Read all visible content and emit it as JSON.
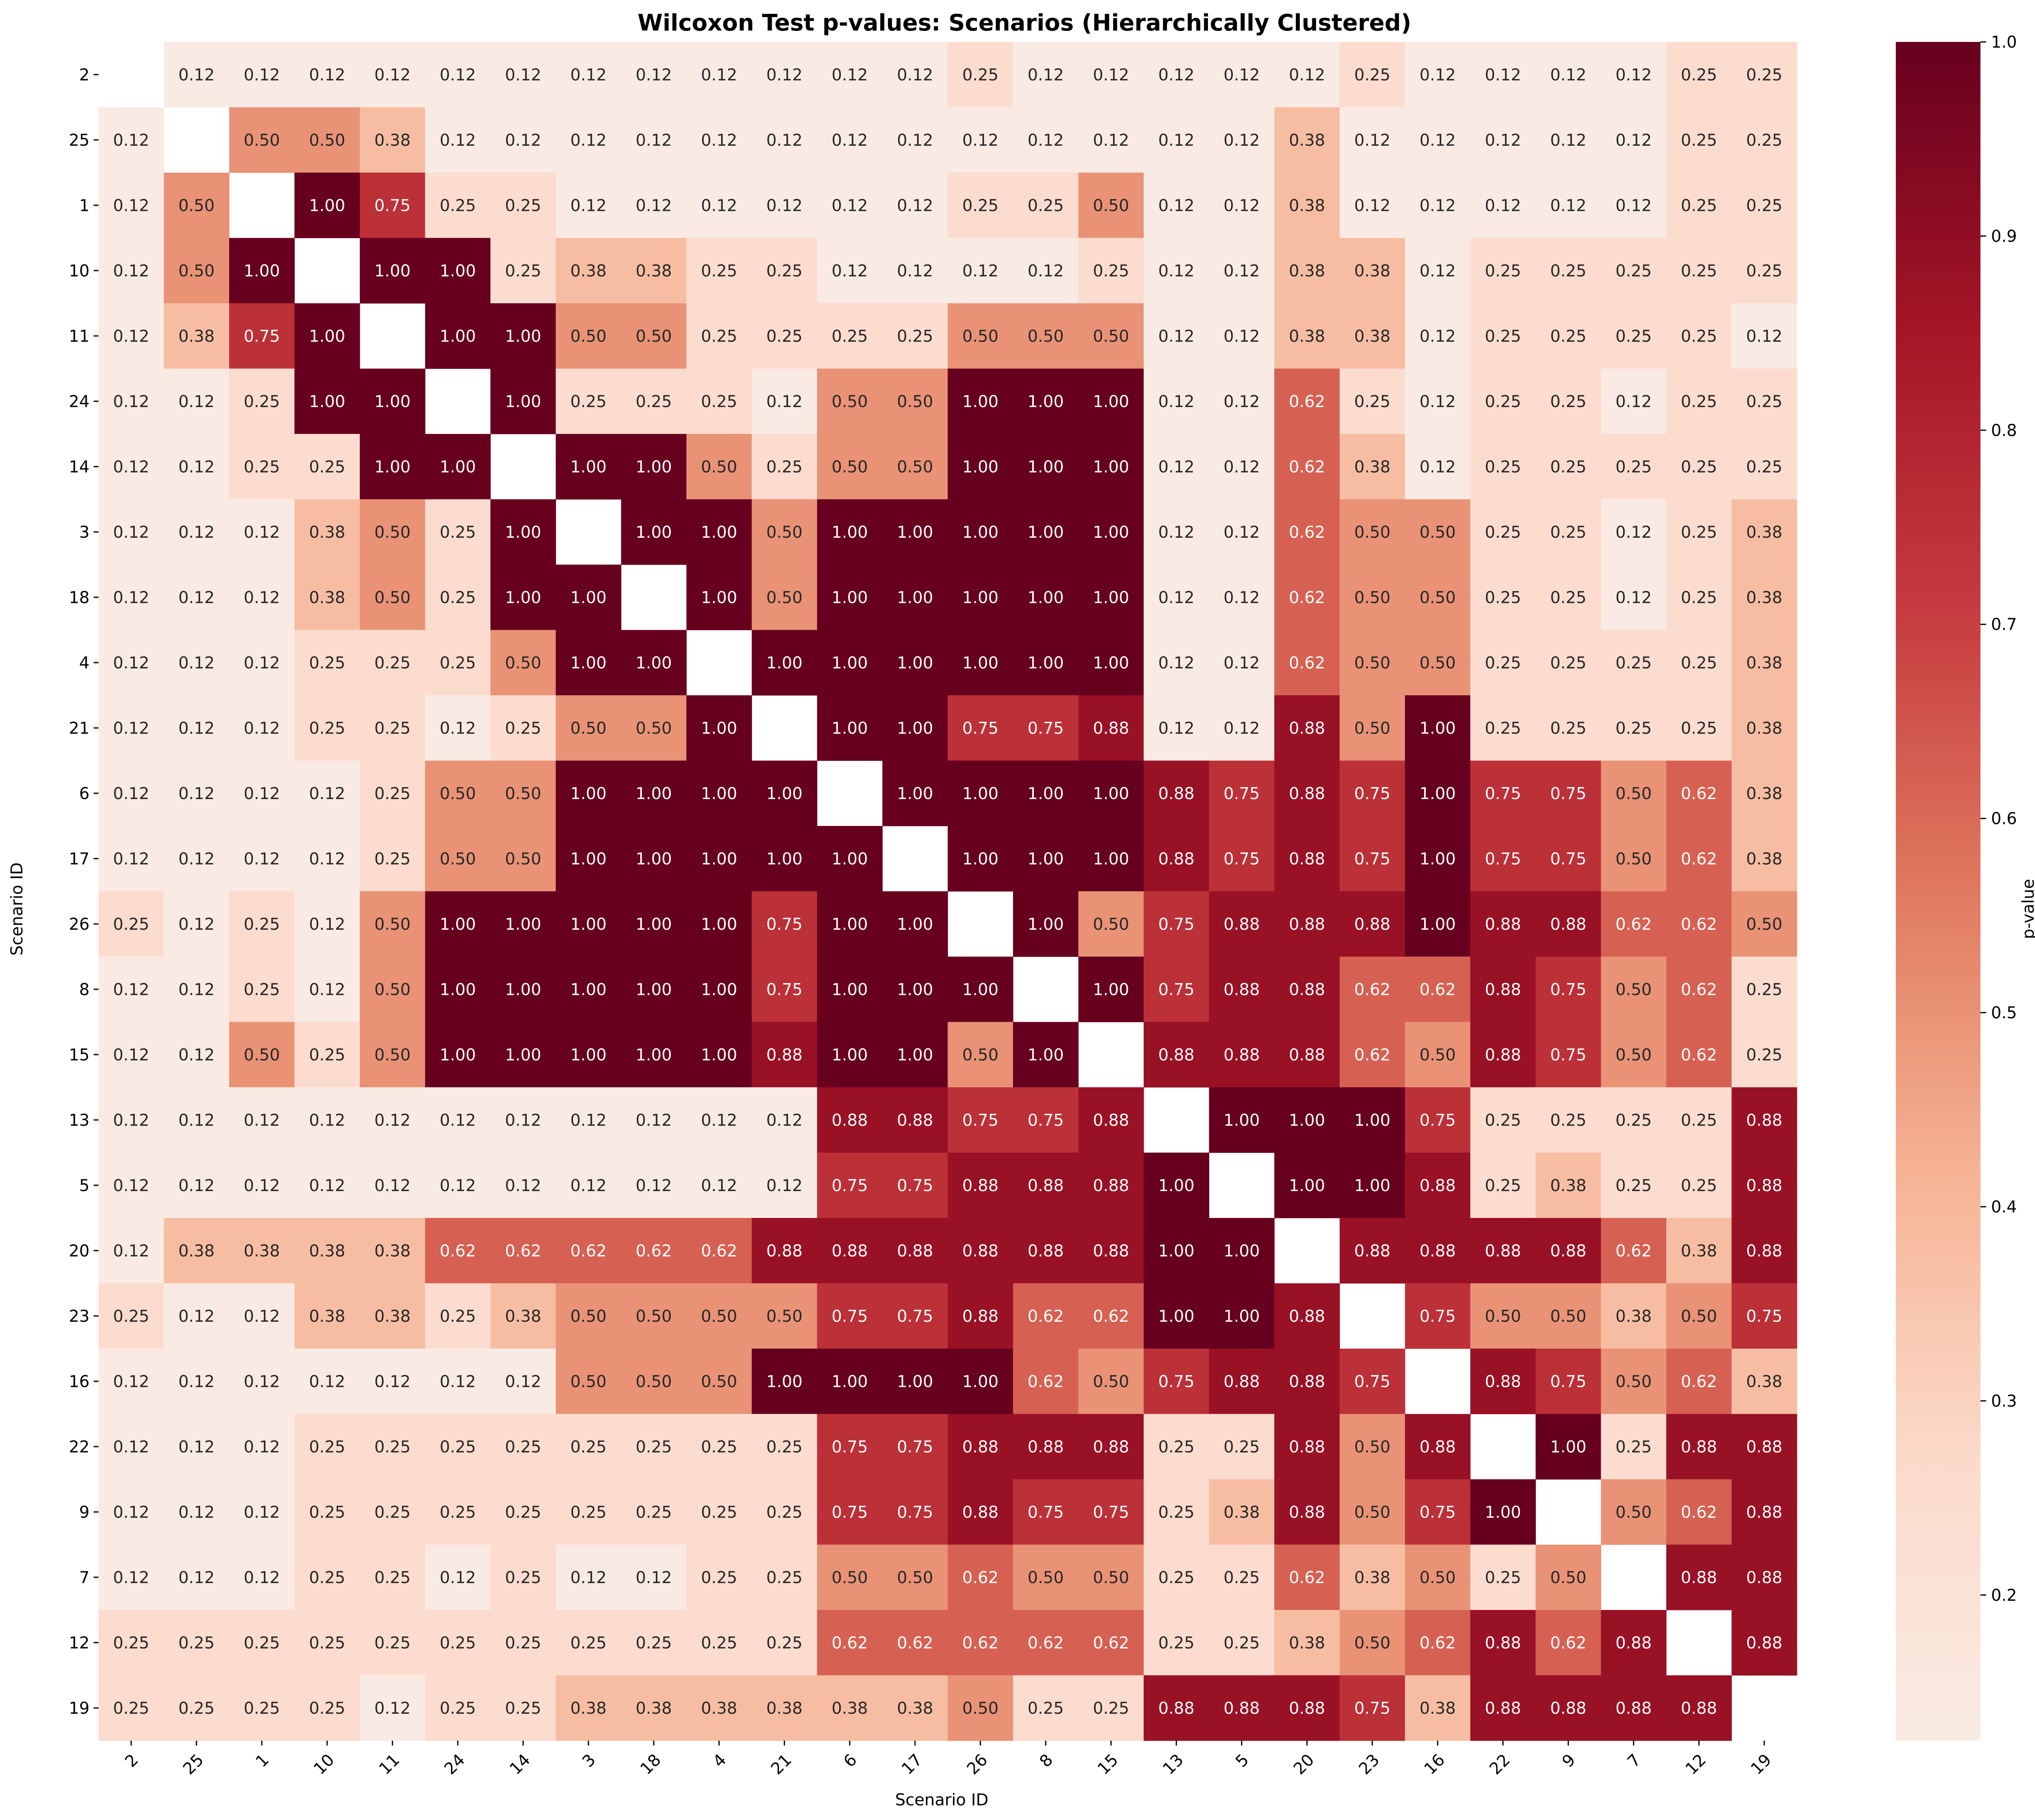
{
  "chart_data": {
    "type": "heatmap",
    "title": "Wilcoxon Test p-values: Scenarios (Hierarchically Clustered)",
    "xlabel": "Scenario ID",
    "ylabel": "Scenario ID",
    "row_labels": [
      "2",
      "25",
      "1",
      "10",
      "11",
      "24",
      "14",
      "3",
      "18",
      "4",
      "21",
      "6",
      "17",
      "26",
      "8",
      "15",
      "13",
      "5",
      "20",
      "23",
      "16",
      "22",
      "9",
      "7",
      "12",
      "19"
    ],
    "col_labels": [
      "2",
      "25",
      "1",
      "10",
      "11",
      "24",
      "14",
      "3",
      "18",
      "4",
      "21",
      "6",
      "17",
      "26",
      "8",
      "15",
      "13",
      "5",
      "20",
      "23",
      "16",
      "22",
      "9",
      "7",
      "12",
      "19"
    ],
    "values": [
      [
        null,
        0.12,
        0.12,
        0.12,
        0.12,
        0.12,
        0.12,
        0.12,
        0.12,
        0.12,
        0.12,
        0.12,
        0.12,
        0.25,
        0.12,
        0.12,
        0.12,
        0.12,
        0.12,
        0.25,
        0.12,
        0.12,
        0.12,
        0.12,
        0.25,
        0.25
      ],
      [
        0.12,
        null,
        0.5,
        0.5,
        0.38,
        0.12,
        0.12,
        0.12,
        0.12,
        0.12,
        0.12,
        0.12,
        0.12,
        0.12,
        0.12,
        0.12,
        0.12,
        0.12,
        0.38,
        0.12,
        0.12,
        0.12,
        0.12,
        0.12,
        0.25,
        0.25
      ],
      [
        0.12,
        0.5,
        null,
        1.0,
        0.75,
        0.25,
        0.25,
        0.12,
        0.12,
        0.12,
        0.12,
        0.12,
        0.12,
        0.25,
        0.25,
        0.5,
        0.12,
        0.12,
        0.38,
        0.12,
        0.12,
        0.12,
        0.12,
        0.12,
        0.25,
        0.25
      ],
      [
        0.12,
        0.5,
        1.0,
        null,
        1.0,
        1.0,
        0.25,
        0.38,
        0.38,
        0.25,
        0.25,
        0.12,
        0.12,
        0.12,
        0.12,
        0.25,
        0.12,
        0.12,
        0.38,
        0.38,
        0.12,
        0.25,
        0.25,
        0.25,
        0.25,
        0.25
      ],
      [
        0.12,
        0.38,
        0.75,
        1.0,
        null,
        1.0,
        1.0,
        0.5,
        0.5,
        0.25,
        0.25,
        0.25,
        0.25,
        0.5,
        0.5,
        0.5,
        0.12,
        0.12,
        0.38,
        0.38,
        0.12,
        0.25,
        0.25,
        0.25,
        0.25,
        0.12
      ],
      [
        0.12,
        0.12,
        0.25,
        1.0,
        1.0,
        null,
        1.0,
        0.25,
        0.25,
        0.25,
        0.12,
        0.5,
        0.5,
        1.0,
        1.0,
        1.0,
        0.12,
        0.12,
        0.62,
        0.25,
        0.12,
        0.25,
        0.25,
        0.12,
        0.25,
        0.25
      ],
      [
        0.12,
        0.12,
        0.25,
        0.25,
        1.0,
        1.0,
        null,
        1.0,
        1.0,
        0.5,
        0.25,
        0.5,
        0.5,
        1.0,
        1.0,
        1.0,
        0.12,
        0.12,
        0.62,
        0.38,
        0.12,
        0.25,
        0.25,
        0.25,
        0.25,
        0.25
      ],
      [
        0.12,
        0.12,
        0.12,
        0.38,
        0.5,
        0.25,
        1.0,
        null,
        1.0,
        1.0,
        0.5,
        1.0,
        1.0,
        1.0,
        1.0,
        1.0,
        0.12,
        0.12,
        0.62,
        0.5,
        0.5,
        0.25,
        0.25,
        0.12,
        0.25,
        0.38
      ],
      [
        0.12,
        0.12,
        0.12,
        0.38,
        0.5,
        0.25,
        1.0,
        1.0,
        null,
        1.0,
        0.5,
        1.0,
        1.0,
        1.0,
        1.0,
        1.0,
        0.12,
        0.12,
        0.62,
        0.5,
        0.5,
        0.25,
        0.25,
        0.12,
        0.25,
        0.38
      ],
      [
        0.12,
        0.12,
        0.12,
        0.25,
        0.25,
        0.25,
        0.5,
        1.0,
        1.0,
        null,
        1.0,
        1.0,
        1.0,
        1.0,
        1.0,
        1.0,
        0.12,
        0.12,
        0.62,
        0.5,
        0.5,
        0.25,
        0.25,
        0.25,
        0.25,
        0.38
      ],
      [
        0.12,
        0.12,
        0.12,
        0.25,
        0.25,
        0.12,
        0.25,
        0.5,
        0.5,
        1.0,
        null,
        1.0,
        1.0,
        0.75,
        0.75,
        0.88,
        0.12,
        0.12,
        0.88,
        0.5,
        1.0,
        0.25,
        0.25,
        0.25,
        0.25,
        0.38
      ],
      [
        0.12,
        0.12,
        0.12,
        0.12,
        0.25,
        0.5,
        0.5,
        1.0,
        1.0,
        1.0,
        1.0,
        null,
        1.0,
        1.0,
        1.0,
        1.0,
        0.88,
        0.75,
        0.88,
        0.75,
        1.0,
        0.75,
        0.75,
        0.5,
        0.62,
        0.38
      ],
      [
        0.12,
        0.12,
        0.12,
        0.12,
        0.25,
        0.5,
        0.5,
        1.0,
        1.0,
        1.0,
        1.0,
        1.0,
        null,
        1.0,
        1.0,
        1.0,
        0.88,
        0.75,
        0.88,
        0.75,
        1.0,
        0.75,
        0.75,
        0.5,
        0.62,
        0.38
      ],
      [
        0.25,
        0.12,
        0.25,
        0.12,
        0.5,
        1.0,
        1.0,
        1.0,
        1.0,
        1.0,
        0.75,
        1.0,
        1.0,
        null,
        1.0,
        0.5,
        0.75,
        0.88,
        0.88,
        0.88,
        1.0,
        0.88,
        0.88,
        0.62,
        0.62,
        0.5
      ],
      [
        0.12,
        0.12,
        0.25,
        0.12,
        0.5,
        1.0,
        1.0,
        1.0,
        1.0,
        1.0,
        0.75,
        1.0,
        1.0,
        1.0,
        null,
        1.0,
        0.75,
        0.88,
        0.88,
        0.62,
        0.62,
        0.88,
        0.75,
        0.5,
        0.62,
        0.25
      ],
      [
        0.12,
        0.12,
        0.5,
        0.25,
        0.5,
        1.0,
        1.0,
        1.0,
        1.0,
        1.0,
        0.88,
        1.0,
        1.0,
        0.5,
        1.0,
        null,
        0.88,
        0.88,
        0.88,
        0.62,
        0.5,
        0.88,
        0.75,
        0.5,
        0.62,
        0.25
      ],
      [
        0.12,
        0.12,
        0.12,
        0.12,
        0.12,
        0.12,
        0.12,
        0.12,
        0.12,
        0.12,
        0.12,
        0.88,
        0.88,
        0.75,
        0.75,
        0.88,
        null,
        1.0,
        1.0,
        1.0,
        0.75,
        0.25,
        0.25,
        0.25,
        0.25,
        0.88
      ],
      [
        0.12,
        0.12,
        0.12,
        0.12,
        0.12,
        0.12,
        0.12,
        0.12,
        0.12,
        0.12,
        0.12,
        0.75,
        0.75,
        0.88,
        0.88,
        0.88,
        1.0,
        null,
        1.0,
        1.0,
        0.88,
        0.25,
        0.38,
        0.25,
        0.25,
        0.88
      ],
      [
        0.12,
        0.38,
        0.38,
        0.38,
        0.38,
        0.62,
        0.62,
        0.62,
        0.62,
        0.62,
        0.88,
        0.88,
        0.88,
        0.88,
        0.88,
        0.88,
        1.0,
        1.0,
        null,
        0.88,
        0.88,
        0.88,
        0.88,
        0.62,
        0.38,
        0.88
      ],
      [
        0.25,
        0.12,
        0.12,
        0.38,
        0.38,
        0.25,
        0.38,
        0.5,
        0.5,
        0.5,
        0.5,
        0.75,
        0.75,
        0.88,
        0.62,
        0.62,
        1.0,
        1.0,
        0.88,
        null,
        0.75,
        0.5,
        0.5,
        0.38,
        0.5,
        0.75
      ],
      [
        0.12,
        0.12,
        0.12,
        0.12,
        0.12,
        0.12,
        0.12,
        0.5,
        0.5,
        0.5,
        1.0,
        1.0,
        1.0,
        1.0,
        0.62,
        0.5,
        0.75,
        0.88,
        0.88,
        0.75,
        null,
        0.88,
        0.75,
        0.5,
        0.62,
        0.38
      ],
      [
        0.12,
        0.12,
        0.12,
        0.25,
        0.25,
        0.25,
        0.25,
        0.25,
        0.25,
        0.25,
        0.25,
        0.75,
        0.75,
        0.88,
        0.88,
        0.88,
        0.25,
        0.25,
        0.88,
        0.5,
        0.88,
        null,
        1.0,
        0.25,
        0.88,
        0.88
      ],
      [
        0.12,
        0.12,
        0.12,
        0.25,
        0.25,
        0.25,
        0.25,
        0.25,
        0.25,
        0.25,
        0.25,
        0.75,
        0.75,
        0.88,
        0.75,
        0.75,
        0.25,
        0.38,
        0.88,
        0.5,
        0.75,
        1.0,
        null,
        0.5,
        0.62,
        0.88
      ],
      [
        0.12,
        0.12,
        0.12,
        0.25,
        0.25,
        0.12,
        0.25,
        0.12,
        0.12,
        0.25,
        0.25,
        0.5,
        0.5,
        0.62,
        0.5,
        0.5,
        0.25,
        0.25,
        0.62,
        0.38,
        0.5,
        0.25,
        0.5,
        null,
        0.88,
        0.88
      ],
      [
        0.25,
        0.25,
        0.25,
        0.25,
        0.25,
        0.25,
        0.25,
        0.25,
        0.25,
        0.25,
        0.25,
        0.62,
        0.62,
        0.62,
        0.62,
        0.62,
        0.25,
        0.25,
        0.38,
        0.5,
        0.62,
        0.88,
        0.62,
        0.88,
        null,
        0.88
      ],
      [
        0.25,
        0.25,
        0.25,
        0.25,
        0.12,
        0.25,
        0.25,
        0.38,
        0.38,
        0.38,
        0.38,
        0.38,
        0.38,
        0.5,
        0.25,
        0.25,
        0.88,
        0.88,
        0.88,
        0.75,
        0.38,
        0.88,
        0.88,
        0.88,
        0.88,
        null
      ]
    ],
    "value_format": "2 decimals",
    "colormap": "RdBu_r (upper half)",
    "vmin": 0.125,
    "vmax": 1.0,
    "colorbar": {
      "label": "p-value",
      "ticks": [
        "0.2",
        "0.3",
        "0.4",
        "0.5",
        "0.6",
        "0.7",
        "0.8",
        "0.9",
        "1.0"
      ],
      "tick_values": [
        0.2,
        0.3,
        0.4,
        0.5,
        0.6,
        0.7,
        0.8,
        0.9,
        1.0
      ]
    },
    "colors": {
      "stops": [
        "#f9ebe3",
        "#fbdaca",
        "#f6b394",
        "#e07a5f",
        "#c63b3f",
        "#a41526",
        "#67001f"
      ],
      "text_dark": "#262626",
      "text_light": "#ffffff"
    }
  }
}
